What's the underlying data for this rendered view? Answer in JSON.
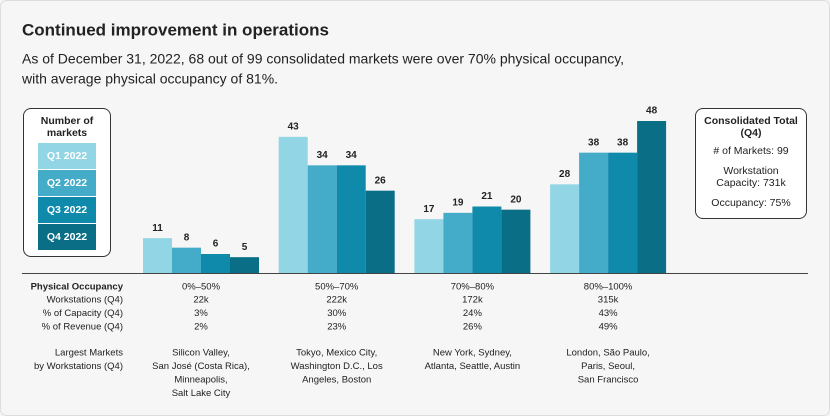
{
  "chart_data": {
    "type": "bar",
    "title": "Continued improvement in operations",
    "subtitle": [
      "As of December 31, 2022, 68 out of 99 consolidated markets were over 70% physical occupancy,",
      "with average physical occupancy of 81%."
    ],
    "legend_title": "Number of markets",
    "categories": [
      "0%–50%",
      "50%–70%",
      "70%–80%",
      "80%–100%"
    ],
    "series": [
      {
        "name": "Q1 2022",
        "color": "#92d5e4",
        "values": [
          11,
          43,
          17,
          28
        ]
      },
      {
        "name": "Q2 2022",
        "color": "#44abc8",
        "values": [
          8,
          34,
          19,
          38
        ]
      },
      {
        "name": "Q3 2022",
        "color": "#0f8aab",
        "values": [
          6,
          34,
          21,
          38
        ]
      },
      {
        "name": "Q4 2022",
        "color": "#0a6f86",
        "values": [
          5,
          26,
          20,
          48
        ]
      }
    ]
  },
  "summary": {
    "title": "Consolidated Total (Q4)",
    "lines": [
      "# of Markets: 99",
      "Workstation Capacity: 731k",
      "Occupancy: 75%"
    ]
  },
  "table": {
    "header": "Physical Occupancy",
    "rows": [
      {
        "label": "Workstations (Q4)",
        "values": [
          "22k",
          "222k",
          "172k",
          "315k"
        ]
      },
      {
        "label": "% of Capacity (Q4)",
        "values": [
          "3%",
          "30%",
          "24%",
          "43%"
        ]
      },
      {
        "label": "% of Revenue (Q4)",
        "values": [
          "2%",
          "23%",
          "26%",
          "49%"
        ]
      }
    ],
    "markets_label": [
      "Largest Markets",
      "by Workstations (Q4)"
    ],
    "markets": [
      [
        "Silicon Valley,",
        "San José (Costa Rica),",
        "Minneapolis,",
        "Salt Lake City"
      ],
      [
        "Tokyo, Mexico City,",
        "Washington D.C., Los",
        "Angeles, Boston"
      ],
      [
        "New York, Sydney,",
        "Atlanta, Seattle, Austin"
      ],
      [
        "London, São Paulo,",
        "Paris, Seoul,",
        "San Francisco"
      ]
    ]
  }
}
